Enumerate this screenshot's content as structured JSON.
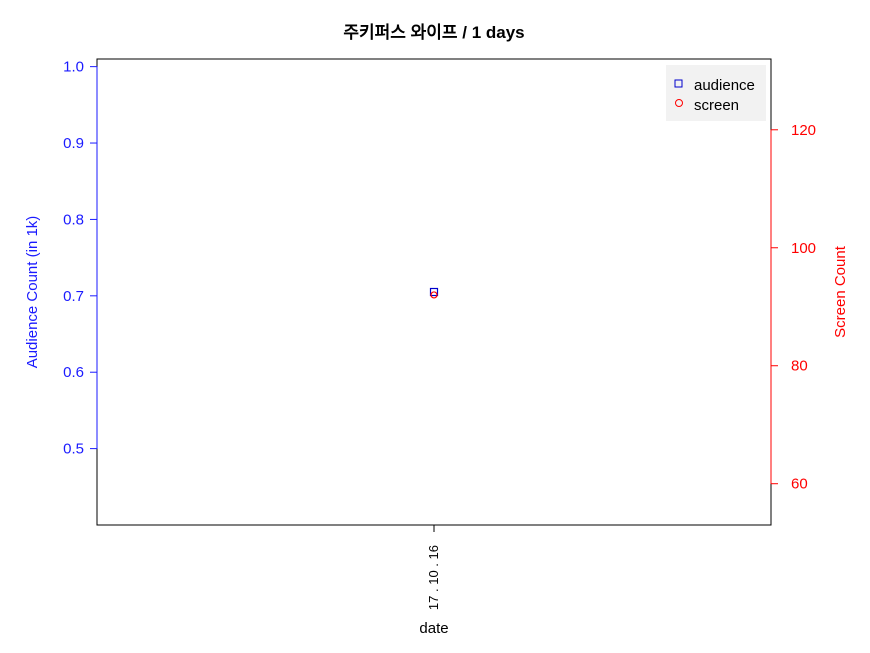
{
  "chart_data": {
    "type": "scatter",
    "title": "주키퍼스 와이프 / 1 days",
    "xlabel": "date",
    "ylabel_left": "Audience Count (in 1k)",
    "ylabel_right": "Screen Count",
    "categories": [
      "17 . 10 . 16"
    ],
    "y_left_ticks": [
      0.5,
      0.6,
      0.7,
      0.8,
      0.9,
      1.0
    ],
    "y_left_lim": [
      0.4,
      1.01
    ],
    "y_right_ticks": [
      60,
      80,
      100,
      120
    ],
    "y_right_lim": [
      53,
      132
    ],
    "series": [
      {
        "name": "audience",
        "axis": "left",
        "marker": "square",
        "color": "#0000cc",
        "values": [
          0.705
        ]
      },
      {
        "name": "screen",
        "axis": "right",
        "marker": "circle",
        "color": "#ff0000",
        "values": [
          92
        ]
      }
    ],
    "legend_position": "top-right",
    "grid": false
  }
}
